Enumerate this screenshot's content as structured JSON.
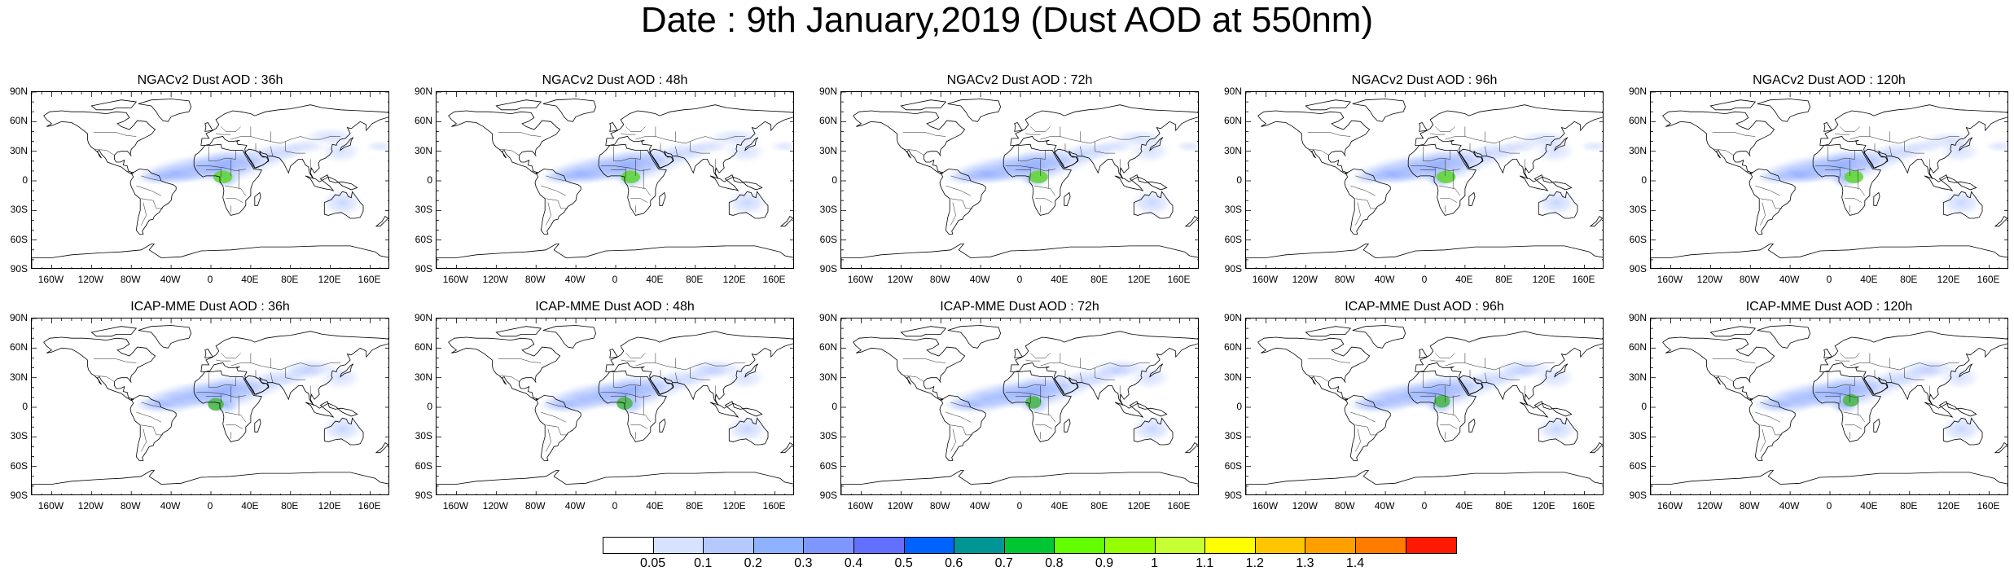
{
  "title": "Date : 9th January,2019 (Dust AOD at 550nm)",
  "panels": [
    {
      "title": "NGACv2 Dust AOD : 36h",
      "model": "ngac",
      "hour": 36
    },
    {
      "title": "NGACv2 Dust AOD : 48h",
      "model": "ngac",
      "hour": 48
    },
    {
      "title": "NGACv2 Dust AOD : 72h",
      "model": "ngac",
      "hour": 72
    },
    {
      "title": "NGACv2 Dust AOD : 96h",
      "model": "ngac",
      "hour": 96
    },
    {
      "title": "NGACv2 Dust AOD : 120h",
      "model": "ngac",
      "hour": 120
    },
    {
      "title": "ICAP-MME Dust AOD : 36h",
      "model": "icap",
      "hour": 36
    },
    {
      "title": "ICAP-MME Dust AOD : 48h",
      "model": "icap",
      "hour": 48
    },
    {
      "title": "ICAP-MME Dust AOD : 72h",
      "model": "icap",
      "hour": 72
    },
    {
      "title": "ICAP-MME Dust AOD : 96h",
      "model": "icap",
      "hour": 96
    },
    {
      "title": "ICAP-MME Dust AOD : 120h",
      "model": "icap",
      "hour": 120
    }
  ],
  "lat_labels": [
    "90N",
    "60N",
    "30N",
    "0",
    "30S",
    "60S",
    "90S"
  ],
  "lon_labels": [
    "160W",
    "120W",
    "80W",
    "40W",
    "0",
    "40E",
    "80E",
    "120E",
    "160E"
  ],
  "colorbar": {
    "colors": [
      "#ffffff",
      "#d6e2ff",
      "#b5c9ff",
      "#8eb2ff",
      "#7f96ff",
      "#6370ff",
      "#0063ff",
      "#009696",
      "#00c633",
      "#63ff00",
      "#96ff00",
      "#c6ff33",
      "#ffff00",
      "#ffc600",
      "#ffa000",
      "#ff7c00",
      "#ff1900"
    ],
    "labels": [
      "0.05",
      "0.1",
      "0.2",
      "0.3",
      "0.4",
      "0.5",
      "0.6",
      "0.7",
      "0.8",
      "0.9",
      "1",
      "1.1",
      "1.2",
      "1.3",
      "1.4"
    ]
  }
}
